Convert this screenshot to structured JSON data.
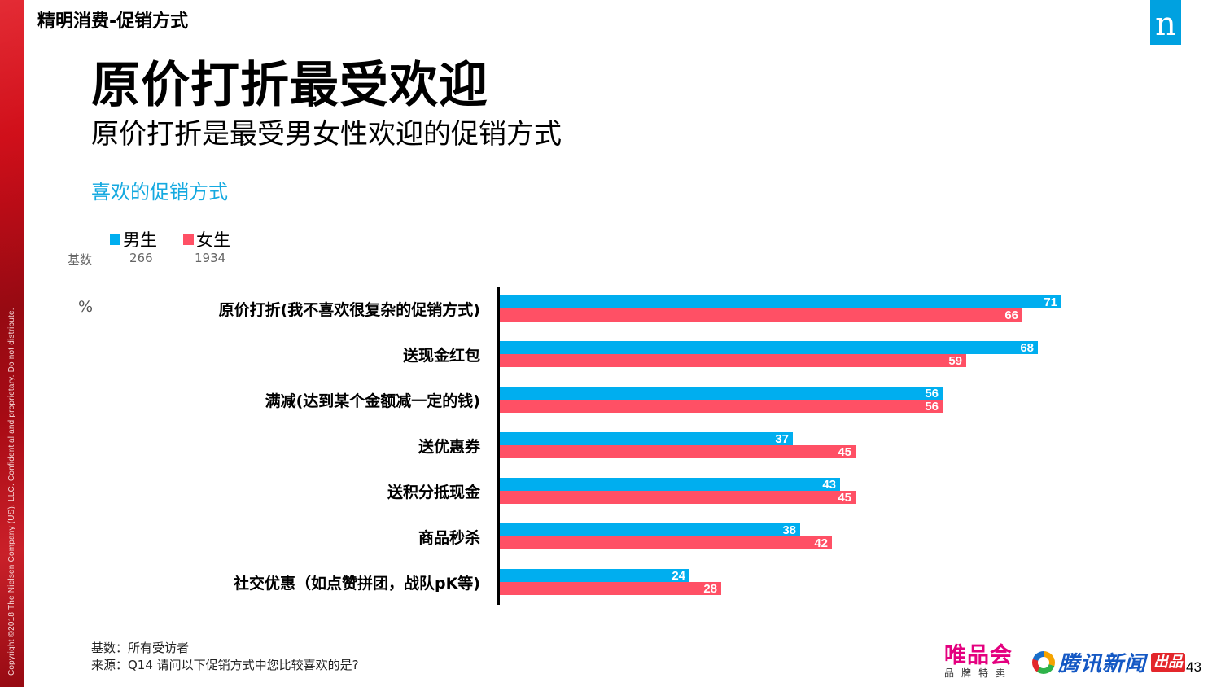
{
  "slide": {
    "section_tag": "精明消费-促销方式",
    "logo_letter": "n",
    "title": "原价打折最受欢迎",
    "subtitle": "原价打折是最受男女性欢迎的促销方式",
    "copyright": "Copyright ©2018 The Nielsen Company (US), LLC. Confidential and proprietary. Do not distribute.",
    "page_number": "43"
  },
  "legend": {
    "base_label": "基数",
    "unit_label": "%",
    "series": [
      {
        "name": "男生",
        "color": "#00aeef",
        "base": "266"
      },
      {
        "name": "女生",
        "color": "#ff5065",
        "base": "1934"
      }
    ]
  },
  "chart_data": {
    "type": "bar",
    "orientation": "horizontal",
    "title": "喜欢的促销方式",
    "xlabel": "",
    "ylabel": "%",
    "categories": [
      "原价打折(我不喜欢很复杂的促销方式)",
      "送现金红包",
      "满减(达到某个金额减一定的钱)",
      "送优惠券",
      "送积分抵现金",
      "商品秒杀",
      "社交优惠（如点赞拼团，战队pK等)"
    ],
    "series": [
      {
        "name": "男生",
        "color": "#00aeef",
        "base": 266,
        "values": [
          71,
          68,
          56,
          37,
          43,
          38,
          24
        ]
      },
      {
        "name": "女生",
        "color": "#ff5065",
        "base": 1934,
        "values": [
          66,
          59,
          56,
          45,
          45,
          42,
          28
        ]
      }
    ],
    "xlim": [
      0,
      100
    ],
    "grid": false,
    "legend_position": "top-left",
    "data_labels": true
  },
  "footer": {
    "base_note": "基数：所有受访者",
    "source_note": "来源：Q14 请问以下促销方式中您比较喜欢的是?",
    "vip_logo_main": "唯品会",
    "vip_logo_sub": "品牌特卖",
    "tencent_logo_text": "腾讯新闻",
    "produce_badge": "出品"
  }
}
